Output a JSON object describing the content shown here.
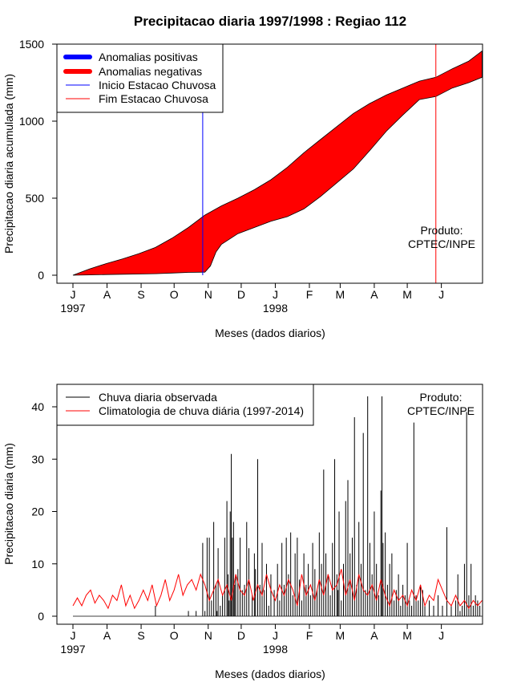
{
  "chart_data": [
    {
      "type": "area",
      "title": "Precipitacao diaria 1997/1998 : Regiao 112",
      "xlabel": "Meses (dados diarios)",
      "ylabel": "Precipitacao diaria acumulada (mm)",
      "ylim": [
        0,
        1500
      ],
      "yticks": [
        "0",
        "500",
        "1000",
        "1500"
      ],
      "months": [
        "J",
        "A",
        "S",
        "O",
        "N",
        "D",
        "J",
        "F",
        "M",
        "A",
        "M",
        "J"
      ],
      "year_labels": [
        {
          "month_index": 0,
          "text": "1997"
        },
        {
          "month_index": 6,
          "text": "1998"
        }
      ],
      "legend": [
        {
          "label": "Anomalias positivas",
          "color": "#0000ff",
          "style": "thick"
        },
        {
          "label": "Anomalias negativas",
          "color": "#ff0000",
          "style": "thick"
        },
        {
          "label": "Inicio Estacao Chuvosa",
          "color": "#0000ff",
          "style": "thin"
        },
        {
          "label": "Fim Estacao Chuvosa",
          "color": "#ff0000",
          "style": "thin"
        }
      ],
      "annotation": [
        "Produto:",
        "CPTEC/INPE"
      ],
      "rainy_season_start_day": 118,
      "rainy_season_end_day": 330,
      "series": [
        {
          "name": "Climatologia acumulada",
          "days": [
            0,
            15,
            30,
            45,
            60,
            75,
            90,
            105,
            120,
            135,
            150,
            165,
            180,
            195,
            210,
            225,
            240,
            255,
            270,
            285,
            300,
            315,
            330,
            345,
            360,
            372
          ],
          "values": [
            0,
            40,
            75,
            105,
            140,
            180,
            240,
            310,
            390,
            450,
            500,
            555,
            620,
            700,
            795,
            880,
            965,
            1050,
            1115,
            1170,
            1215,
            1260,
            1285,
            1340,
            1390,
            1455
          ]
        },
        {
          "name": "Observada acumulada",
          "days": [
            0,
            15,
            30,
            45,
            60,
            75,
            90,
            105,
            120,
            125,
            130,
            135,
            150,
            165,
            180,
            195,
            210,
            225,
            240,
            255,
            270,
            285,
            300,
            315,
            330,
            345,
            360,
            372
          ],
          "values": [
            0,
            2,
            4,
            6,
            8,
            10,
            14,
            18,
            20,
            60,
            150,
            200,
            270,
            310,
            350,
            380,
            430,
            510,
            600,
            690,
            810,
            935,
            1040,
            1140,
            1160,
            1215,
            1250,
            1285
          ]
        }
      ],
      "colors": {
        "fill": "#ff0000",
        "start_line": "#0000ff",
        "end_line": "#ff0000"
      }
    },
    {
      "type": "line",
      "title": "",
      "xlabel": "Meses (dados diarios)",
      "ylabel": "Precipitacao diaria (mm)",
      "ylim": [
        0,
        45
      ],
      "yticks": [
        "0",
        "10",
        "20",
        "30",
        "40"
      ],
      "months": [
        "J",
        "A",
        "S",
        "O",
        "N",
        "D",
        "J",
        "F",
        "M",
        "A",
        "M",
        "J"
      ],
      "year_labels": [
        {
          "month_index": 0,
          "text": "1997"
        },
        {
          "month_index": 6,
          "text": "1998"
        }
      ],
      "legend": [
        {
          "label": "Chuva diaria observada",
          "color": "#000000"
        },
        {
          "label": "Climatologia de chuva diária (1997-2014)",
          "color": "#ff0000"
        }
      ],
      "annotation": [
        "Produto:",
        "CPTEC/INPE"
      ],
      "series": [
        {
          "name": "Chuva diaria observada",
          "color": "#000000",
          "days": [
            75,
            105,
            112,
            118,
            120,
            122,
            124,
            126,
            128,
            130,
            131,
            132,
            134,
            136,
            138,
            140,
            141,
            142,
            143,
            144,
            145,
            146,
            147,
            148,
            150,
            152,
            154,
            156,
            158,
            160,
            163,
            165,
            166,
            168,
            170,
            172,
            174,
            176,
            178,
            180,
            183,
            186,
            188,
            190,
            192,
            194,
            196,
            198,
            200,
            202,
            204,
            206,
            208,
            210,
            212,
            214,
            216,
            218,
            220,
            222,
            224,
            226,
            228,
            230,
            232,
            234,
            236,
            238,
            240,
            241,
            242,
            244,
            246,
            248,
            250,
            252,
            254,
            256,
            258,
            260,
            262,
            264,
            266,
            268,
            270,
            272,
            274,
            276,
            278,
            280,
            281,
            282,
            284,
            286,
            288,
            290,
            292,
            294,
            296,
            298,
            300,
            302,
            304,
            306,
            308,
            310,
            312,
            314,
            316,
            318,
            320,
            324,
            328,
            332,
            336,
            340,
            344,
            348,
            350,
            352,
            354,
            356,
            358,
            360,
            362,
            364,
            366,
            368,
            370
          ],
          "values": [
            2,
            1,
            1,
            14,
            1,
            15,
            15,
            3,
            18,
            6,
            1,
            13,
            2,
            4,
            15,
            22,
            8,
            3,
            20,
            31,
            15,
            18,
            6,
            8,
            9,
            15,
            5,
            6,
            18,
            13,
            4,
            12,
            9,
            30,
            6,
            14,
            5,
            10,
            2,
            8,
            5,
            10,
            3,
            14,
            6,
            15,
            8,
            16,
            4,
            12,
            15,
            7,
            3,
            12,
            6,
            10,
            4,
            14,
            9,
            5,
            16,
            10,
            28,
            12,
            8,
            4,
            14,
            30,
            8,
            5,
            20,
            3,
            10,
            22,
            26,
            12,
            15,
            38,
            6,
            18,
            10,
            35,
            5,
            42,
            14,
            8,
            20,
            10,
            4,
            24,
            42,
            14,
            16,
            6,
            10,
            12,
            3,
            5,
            8,
            2,
            6,
            4,
            14,
            3,
            2,
            37,
            4,
            3,
            6,
            5,
            2,
            3,
            2,
            4,
            2,
            17,
            2,
            3,
            8,
            1,
            2,
            10,
            39,
            4,
            10,
            2,
            4,
            3,
            2
          ]
        },
        {
          "name": "Climatologia de chuva diária (1997-2014)",
          "color": "#ff0000",
          "days": [
            0,
            4,
            8,
            12,
            16,
            20,
            24,
            28,
            32,
            36,
            40,
            44,
            48,
            52,
            56,
            60,
            64,
            68,
            72,
            76,
            80,
            84,
            88,
            92,
            96,
            100,
            104,
            108,
            112,
            116,
            120,
            124,
            128,
            132,
            136,
            140,
            144,
            148,
            152,
            156,
            160,
            164,
            168,
            172,
            176,
            180,
            184,
            188,
            192,
            196,
            200,
            204,
            208,
            212,
            216,
            220,
            224,
            228,
            232,
            236,
            240,
            244,
            248,
            252,
            256,
            260,
            264,
            268,
            272,
            276,
            280,
            284,
            288,
            292,
            296,
            300,
            304,
            308,
            312,
            316,
            320,
            324,
            328,
            332,
            336,
            340,
            344,
            348,
            352,
            356,
            360,
            364,
            368,
            372
          ],
          "values": [
            2,
            3.5,
            2,
            4,
            5,
            2.5,
            4,
            3,
            1.5,
            4,
            3,
            6,
            2,
            4,
            1.5,
            3,
            5,
            3,
            6,
            2,
            4,
            7,
            3,
            5,
            8,
            4,
            6,
            7,
            5,
            8,
            6,
            3,
            5,
            7,
            4,
            6,
            3,
            8,
            5,
            4,
            7,
            3,
            6,
            4,
            8,
            5,
            3,
            6,
            4,
            7,
            5,
            2,
            8,
            4,
            6,
            3,
            7,
            4,
            8,
            5,
            6,
            9,
            4,
            7,
            3,
            8,
            5,
            4,
            6,
            3,
            7,
            4,
            2,
            5,
            3,
            4,
            2,
            5,
            3,
            6,
            2,
            4,
            3,
            7,
            5,
            3,
            2,
            4,
            2,
            3,
            1.5,
            3,
            2,
            3
          ]
        }
      ]
    }
  ]
}
